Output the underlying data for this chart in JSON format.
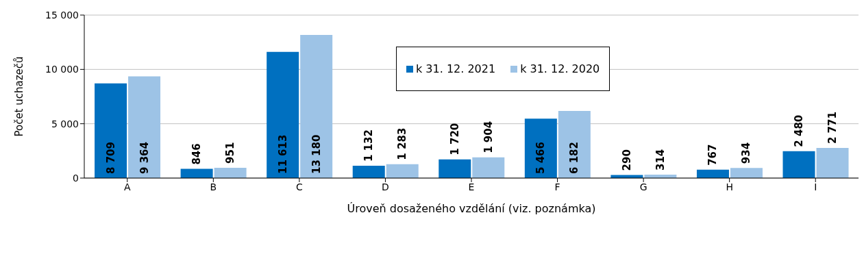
{
  "chart_data": {
    "type": "bar",
    "xlabel": "Úroveň dosaženého vzdělání  (viz. poznámka)",
    "ylabel": "Počet uchazečů",
    "categories": [
      "A",
      "B",
      "C",
      "D",
      "E",
      "F",
      "G",
      "H",
      "I"
    ],
    "series": [
      {
        "name": "k 31. 12. 2021",
        "color": "#0070c0",
        "values": [
          8709,
          846,
          11613,
          1132,
          1720,
          5466,
          290,
          767,
          2480
        ],
        "value_labels": [
          "8 709",
          "846",
          "11 613",
          "1 132",
          "1 720",
          "5 466",
          "290",
          "767",
          "2 480"
        ]
      },
      {
        "name": "k 31. 12. 2020",
        "color": "#9dc3e6",
        "values": [
          9364,
          951,
          13180,
          1283,
          1904,
          6182,
          314,
          934,
          2771
        ],
        "value_labels": [
          "9 364",
          "951",
          "13 180",
          "1 283",
          "1 904",
          "6 182",
          "314",
          "934",
          "2 771"
        ]
      }
    ],
    "ylim": [
      0,
      15000
    ],
    "yticks": [
      {
        "value": 0,
        "label": "0"
      },
      {
        "value": 5000,
        "label": "5 000"
      },
      {
        "value": 10000,
        "label": "10 000"
      },
      {
        "value": 15000,
        "label": "15 000"
      }
    ],
    "grid": "y",
    "legend": "top"
  }
}
